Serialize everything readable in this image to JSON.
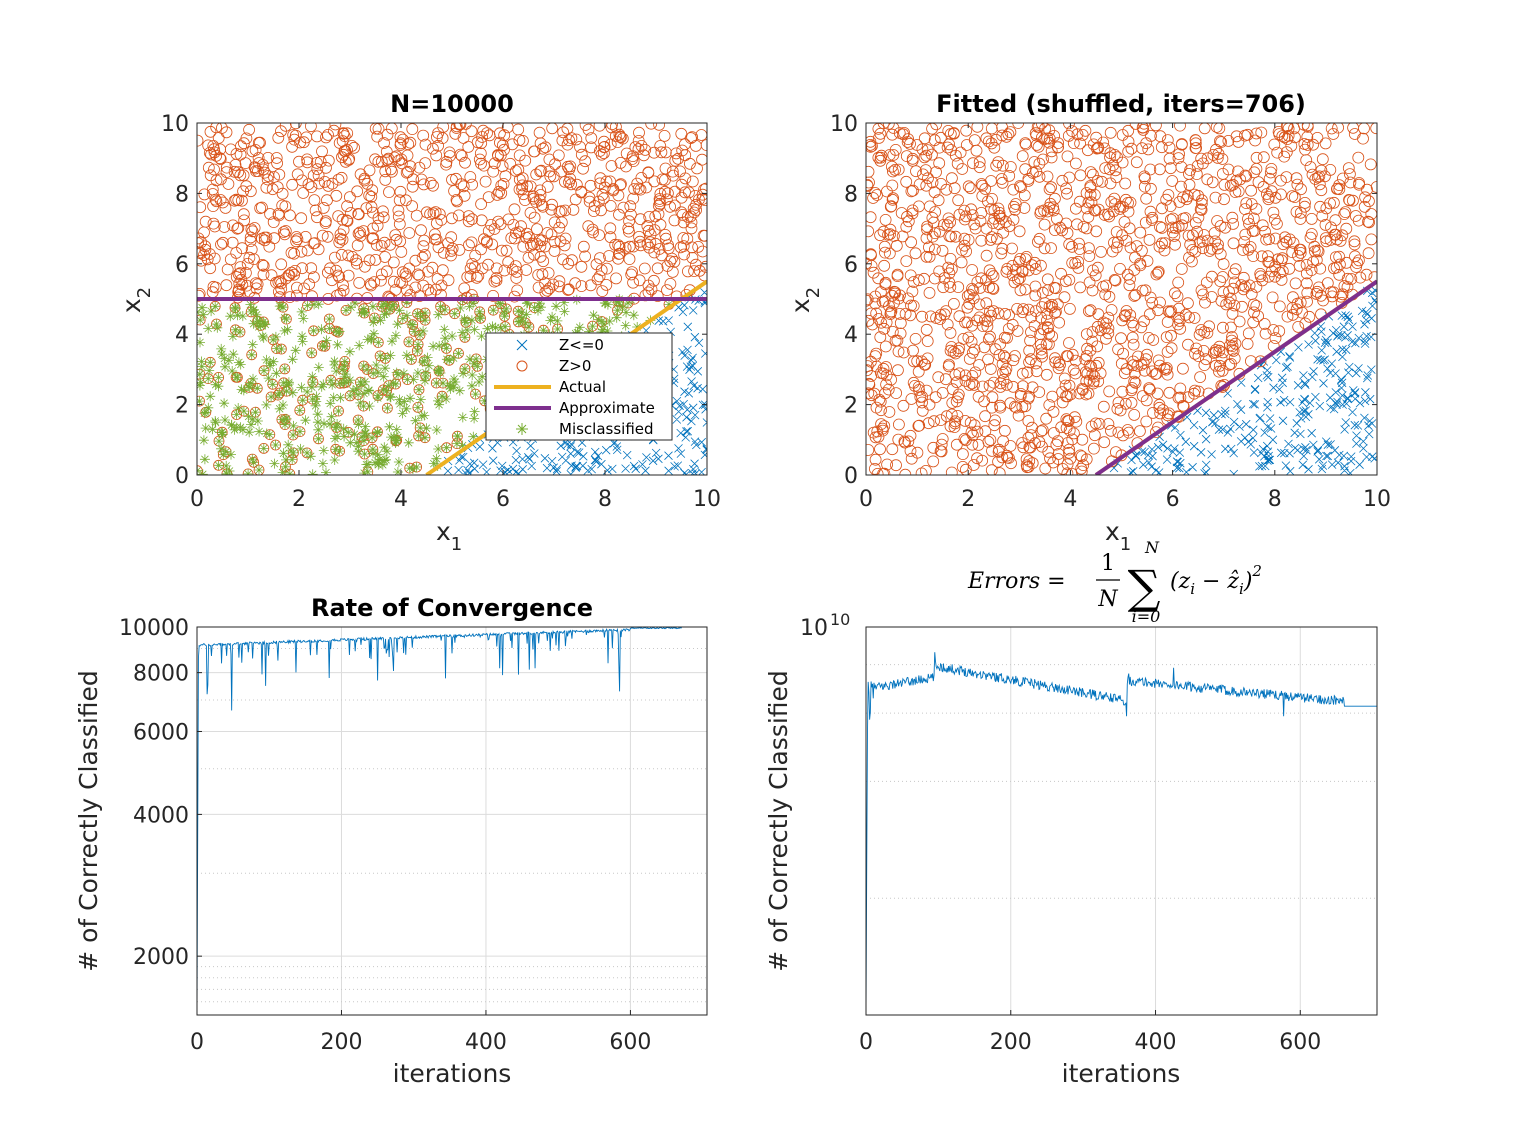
{
  "colors": {
    "blue": "#0072BD",
    "orange": "#D95319",
    "yellow": "#EDB120",
    "purple": "#7E2F8E",
    "green": "#77AC30",
    "axis": "#262626",
    "grid": "#dcdcdc"
  },
  "chart_data": [
    {
      "type": "scatter",
      "title": "N=10000",
      "xlabel_base": "x",
      "xlabel_sub": "1",
      "ylabel_base": "x",
      "ylabel_sub": "2",
      "xlim": [
        0,
        10
      ],
      "ylim": [
        0,
        10
      ],
      "xticks": [
        "0",
        "2",
        "4",
        "6",
        "8",
        "10"
      ],
      "yticks": [
        "0",
        "2",
        "4",
        "6",
        "8",
        "10"
      ],
      "n_points": 10000,
      "actual_boundary": {
        "x": [
          4.5,
          10
        ],
        "y": [
          0,
          5.5
        ]
      },
      "approximate_boundary": {
        "x": [
          0,
          10
        ],
        "y": [
          5,
          5
        ]
      },
      "legend": {
        "position": "east",
        "entries": [
          "Z<=0",
          "Z>0",
          "Actual",
          "Approximate",
          "Misclassified"
        ]
      }
    },
    {
      "type": "scatter",
      "title": "Fitted (shuffled, iters=706)",
      "xlabel_base": "x",
      "xlabel_sub": "1",
      "ylabel_base": "x",
      "ylabel_sub": "2",
      "xlim": [
        0,
        10
      ],
      "ylim": [
        0,
        10
      ],
      "xticks": [
        "0",
        "2",
        "4",
        "6",
        "8",
        "10"
      ],
      "yticks": [
        "0",
        "2",
        "4",
        "6",
        "8",
        "10"
      ],
      "n_points": 10000,
      "fitted_boundary": {
        "x": [
          4.5,
          10
        ],
        "y": [
          0,
          5.5
        ]
      }
    },
    {
      "type": "line",
      "title": "Rate of Convergence",
      "xlabel": "iterations",
      "ylabel": "# of Correctly Classified",
      "yscale": "log",
      "xlim": [
        0,
        706
      ],
      "ylim": [
        1500,
        10000
      ],
      "xticks": [
        "0",
        "200",
        "400",
        "600"
      ],
      "yticks": [
        "2000",
        "4000",
        "6000",
        "8000",
        "10000"
      ],
      "grid": true,
      "series_description": "jumps from about 1500 to ~9200 within first iterations, slowly rising to 10000 by ~600, with occasional downward spikes (min ~6600 near iter 48, ~7300 near iter 585)"
    },
    {
      "type": "line",
      "title_parts": {
        "lhs": "Errors = ",
        "frac_num": "1",
        "frac_den": "N",
        "sum_upper": "N",
        "sum_lower": "i=0",
        "body": "(z",
        "sub_i": "i",
        "minus": " − ",
        "zhat": "ẑ",
        "close": ")",
        "power": "2"
      },
      "xlabel": "iterations",
      "ylabel": "# of Correctly Classified",
      "yscale": "log",
      "xlim": [
        0,
        706
      ],
      "ylim_exponent": [
        9,
        10
      ],
      "ytick_base": "10",
      "ytick_exp": "10",
      "xticks": [
        "0",
        "200",
        "400",
        "600"
      ],
      "grid": true,
      "series_description": "rises steeply at start to ~7.5e9 plateau, peak near iter 95, declines to ~6e9 near iter 360, jumps to ~7e9, slowly declines to ~6e9 flat after iter 660"
    }
  ]
}
